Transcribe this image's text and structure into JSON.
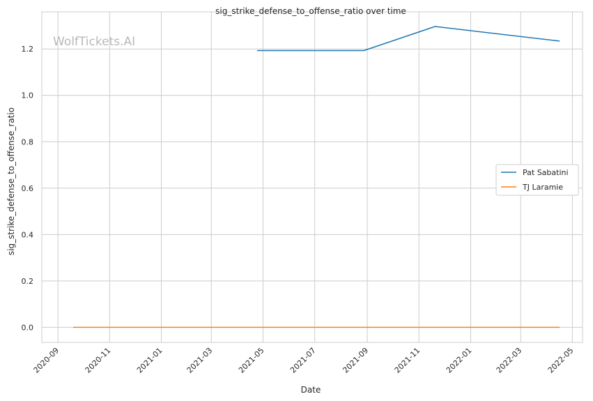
{
  "chart_data": {
    "type": "line",
    "title": "sig_strike_defense_to_offense_ratio over time",
    "xlabel": "Date",
    "ylabel": "sig_strike_defense_to_offense_ratio",
    "watermark": "WolfTickets.AI",
    "x_axis_type": "date",
    "xlim": [
      "2020-08-13",
      "2022-05-13"
    ],
    "ylim": [
      -0.065,
      1.36
    ],
    "x_ticks": [
      "2020-09",
      "2020-11",
      "2021-01",
      "2021-03",
      "2021-05",
      "2021-07",
      "2021-09",
      "2021-11",
      "2022-01",
      "2022-03",
      "2022-05"
    ],
    "y_ticks": [
      "0.0",
      "0.2",
      "0.4",
      "0.6",
      "0.8",
      "1.0",
      "1.2"
    ],
    "grid": true,
    "legend_position": "center-right",
    "series": [
      {
        "name": "Pat Sabatini",
        "color": "#1f77b4",
        "points": [
          {
            "x": "2021-04-24",
            "y": 1.193
          },
          {
            "x": "2021-08-28",
            "y": 1.193
          },
          {
            "x": "2021-11-20",
            "y": 1.297
          },
          {
            "x": "2022-04-16",
            "y": 1.234
          }
        ]
      },
      {
        "name": "TJ Laramie",
        "color": "#ff7f0e",
        "points": [
          {
            "x": "2020-09-19",
            "y": 0.0
          },
          {
            "x": "2022-04-16",
            "y": 0.0
          }
        ]
      }
    ]
  }
}
